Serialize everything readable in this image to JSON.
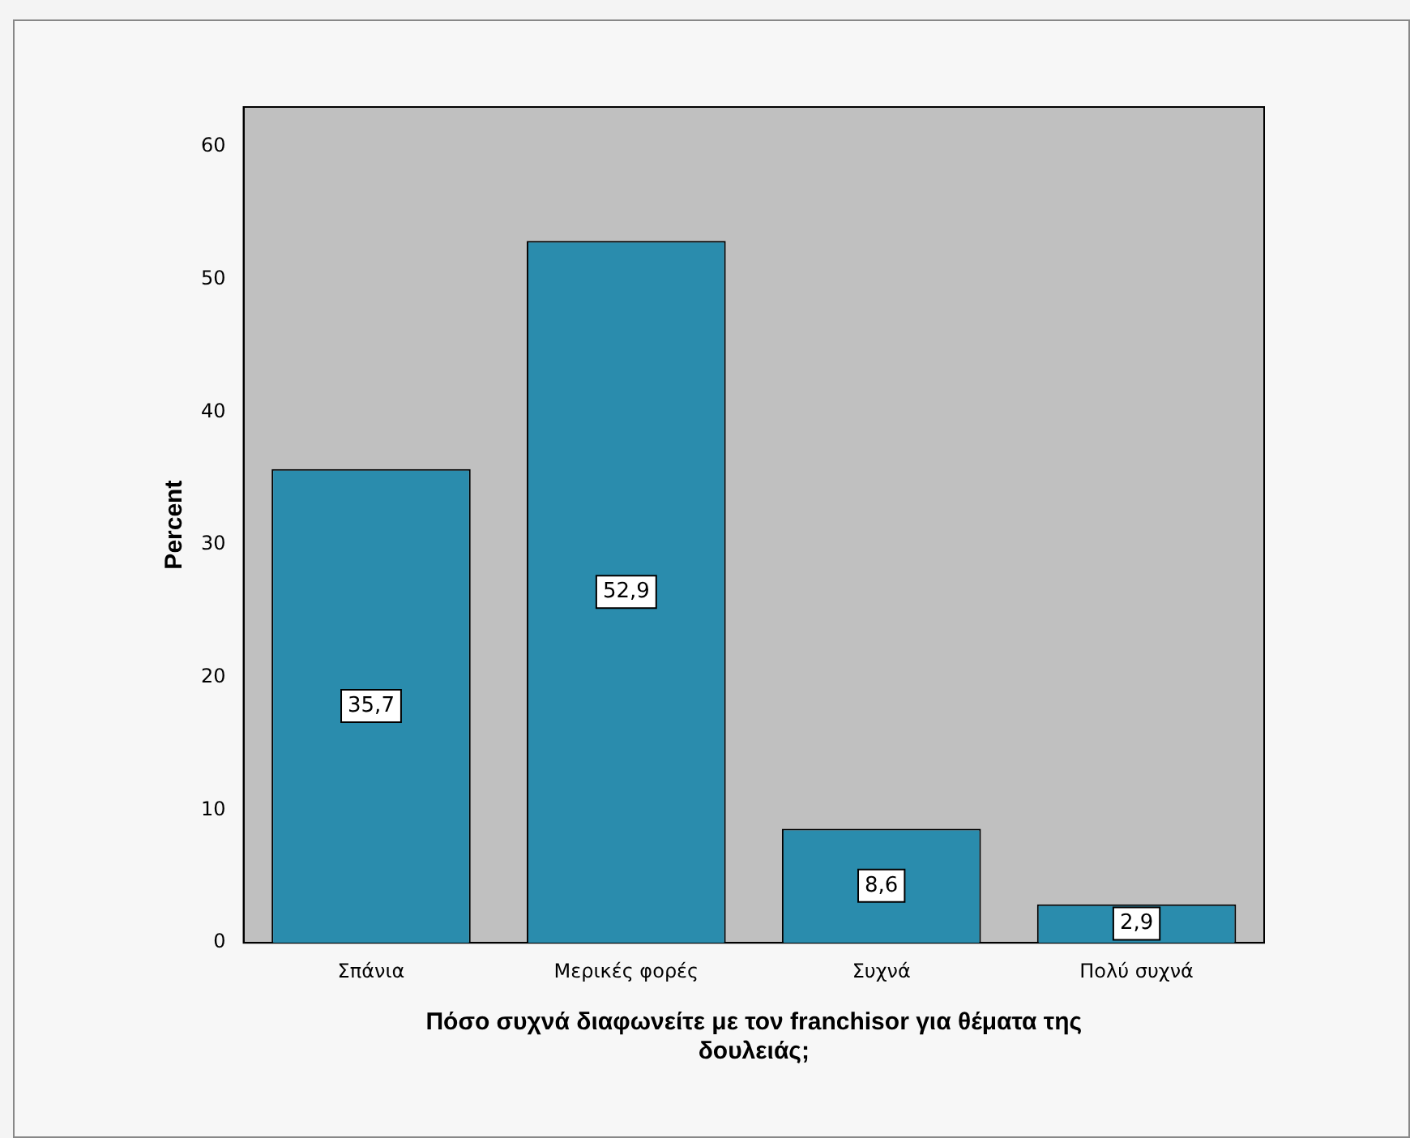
{
  "chart_data": {
    "type": "bar",
    "xlabel": "Πόσο συχνά διαφωνείτε με τον franchisor για θέματα της δουλειάς;",
    "ylabel": "Percent",
    "categories": [
      "Σπάνια",
      "Μερικές φορές",
      "Συχνά",
      "Πολύ συχνά"
    ],
    "values": [
      35.7,
      52.9,
      8.6,
      2.9
    ],
    "color": "#2a8cad",
    "value_labels": [
      "35,7",
      "52,9",
      "8,6",
      "2,9"
    ],
    "ylim": [
      0,
      63
    ],
    "yticks": [
      0,
      10,
      20,
      30,
      40,
      50,
      60
    ]
  }
}
